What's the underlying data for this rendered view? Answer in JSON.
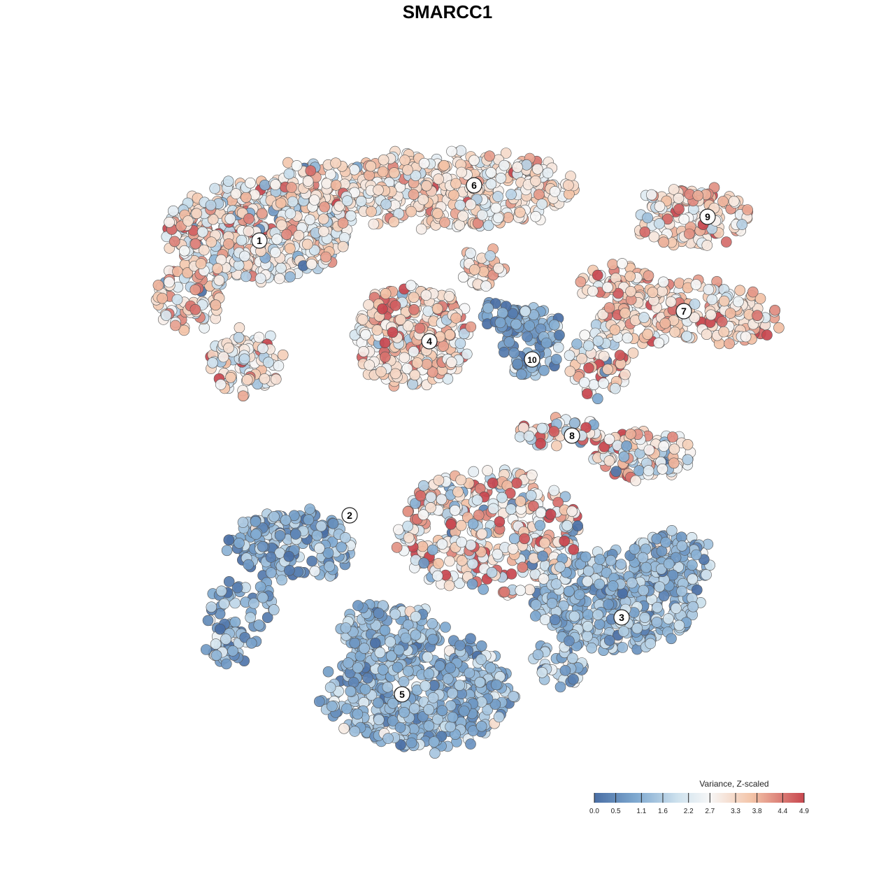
{
  "chart_data": {
    "type": "scatter",
    "title": "SMARCC1",
    "xlabel": "",
    "ylabel": "",
    "grid": false,
    "legend": {
      "title": "Variance, Z-scaled",
      "placement": "bottom-right",
      "ticks": [
        "0.0",
        "0.5",
        "1.1",
        "1.6",
        "2.2",
        "2.7",
        "3.3",
        "3.8",
        "4.4",
        "4.9"
      ],
      "range": [
        0.0,
        4.9
      ]
    },
    "colors": {
      "low": "#4a6fa5",
      "mid": "#f7f7f7",
      "high": "#c8474f",
      "point_stroke": "#555555"
    },
    "clusters": [
      {
        "label": "1",
        "level": 2.9,
        "spread": 0.9
      },
      {
        "label": "2",
        "level": 1.0,
        "spread": 0.7
      },
      {
        "label": "3",
        "level": 1.3,
        "spread": 0.6
      },
      {
        "label": "4",
        "level": 3.3,
        "spread": 0.8
      },
      {
        "label": "5",
        "level": 1.2,
        "spread": 0.5
      },
      {
        "label": "6",
        "level": 3.1,
        "spread": 0.6
      },
      {
        "label": "7",
        "level": 3.4,
        "spread": 0.7
      },
      {
        "label": "8",
        "level": 2.9,
        "spread": 1.2
      },
      {
        "label": "9",
        "level": 3.3,
        "spread": 0.8
      },
      {
        "label": "10",
        "level": 0.8,
        "spread": 0.6
      }
    ]
  }
}
